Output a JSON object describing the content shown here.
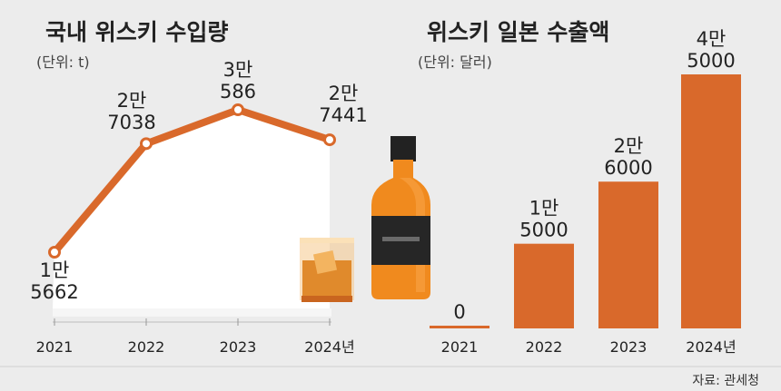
{
  "chart_data": [
    {
      "type": "line",
      "title": "국내 위스키 수입량",
      "unit_label": "(단위: t)",
      "categories": [
        "2021",
        "2022",
        "2023",
        "2024년"
      ],
      "values": [
        15662,
        27038,
        30586,
        27441
      ],
      "value_labels": [
        [
          "1만",
          "5662"
        ],
        [
          "2만",
          "7038"
        ],
        [
          "3만",
          "586"
        ],
        [
          "2만",
          "7441"
        ]
      ],
      "color": "#d9692b"
    },
    {
      "type": "bar",
      "title": "위스키 일본 수출액",
      "unit_label": "(단위: 달러)",
      "categories": [
        "2021",
        "2022",
        "2023",
        "2024년"
      ],
      "values": [
        0,
        15000,
        26000,
        45000
      ],
      "value_labels": [
        [
          "0"
        ],
        [
          "1만",
          "5000"
        ],
        [
          "2만",
          "6000"
        ],
        [
          "4만",
          "5000"
        ]
      ],
      "color": "#d9692b"
    }
  ],
  "source": "자료: 관세청"
}
